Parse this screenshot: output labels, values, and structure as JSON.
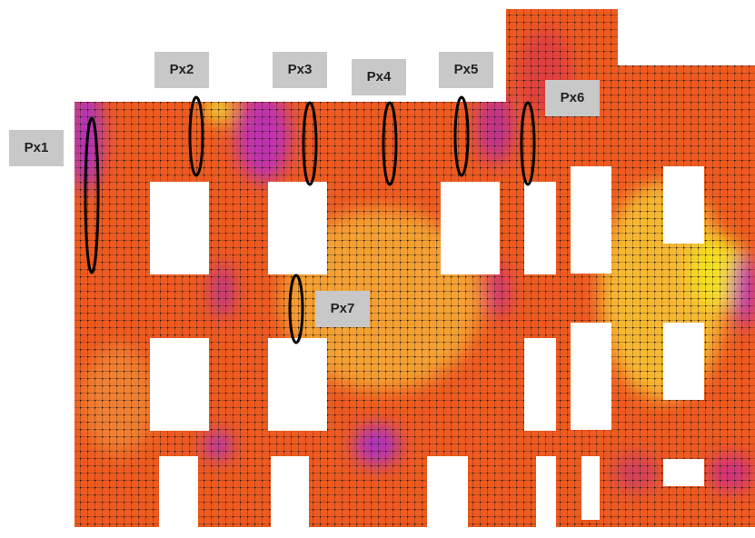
{
  "labels": [
    "Px1",
    "Px2",
    "Px3",
    "Px4",
    "Px5",
    "Px6",
    "Px7"
  ]
}
